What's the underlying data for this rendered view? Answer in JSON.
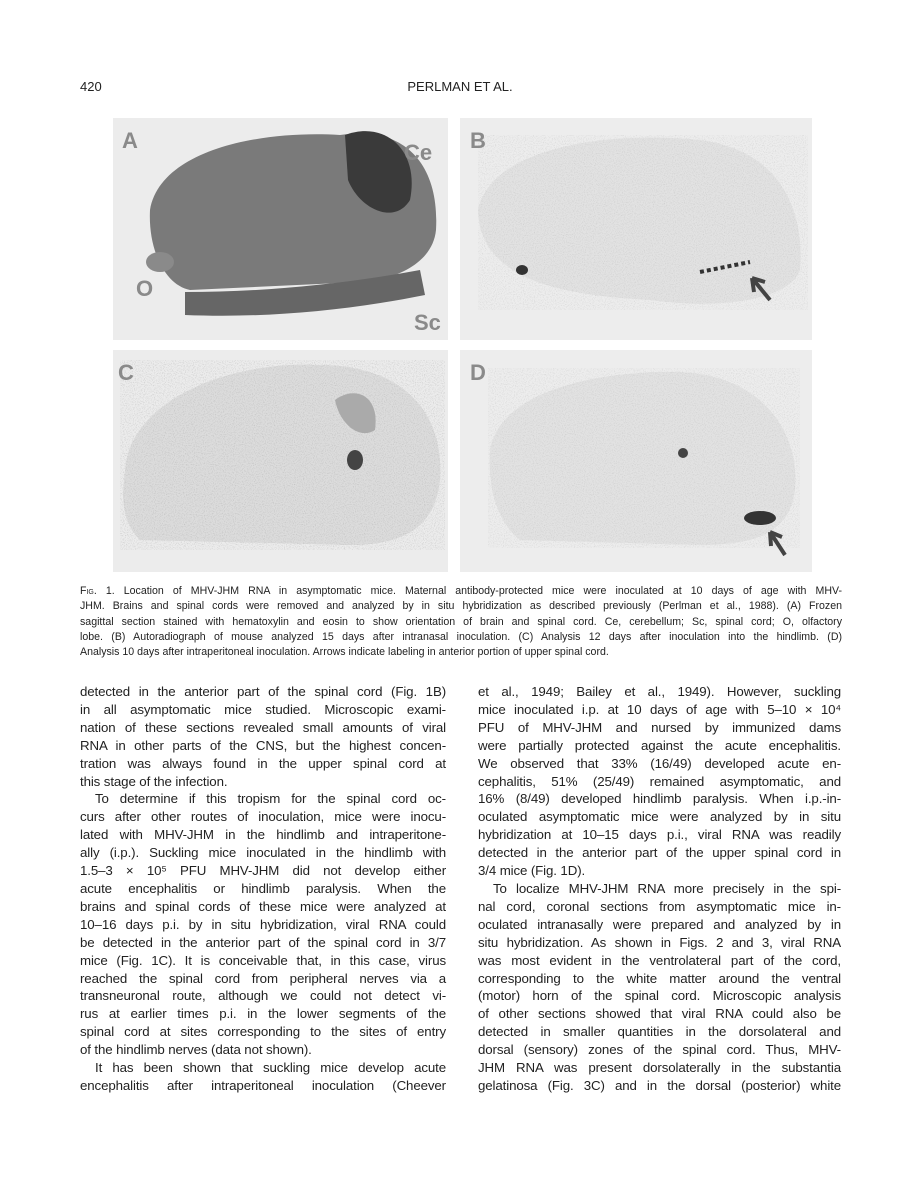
{
  "header": {
    "page_number": "420",
    "running_title": "PERLMAN ET AL."
  },
  "figure": {
    "panels": [
      {
        "letter": "A",
        "labels": [
          "Ce",
          "O",
          "Sc"
        ]
      },
      {
        "letter": "B",
        "labels": []
      },
      {
        "letter": "C",
        "labels": []
      },
      {
        "letter": "D",
        "labels": []
      }
    ],
    "caption": {
      "label": "Fig. 1.",
      "lines": [
        "Location of MHV-JHM RNA in asymptomatic mice. Maternal antibody-protected mice were inoculated at 10 days of age with MHV-",
        "JHM. Brains and spinal cords were removed and analyzed by in situ hybridization as described previously (Perlman et al., 1988). (A) Frozen",
        "sagittal section stained with hematoxylin and eosin to show orientation of brain and spinal cord. Ce, cerebellum; Sc, spinal cord; O, olfactory",
        "lobe. (B) Autoradiograph of mouse analyzed 15 days after intranasal inoculation. (C) Analysis 12 days after inoculation into the hindlimb. (D)",
        "Analysis 10 days after intraperitoneal inoculation. Arrows indicate labeling in anterior portion of upper spinal cord."
      ]
    }
  },
  "body": {
    "columns": [
      {
        "paragraphs": [
          {
            "lines": [
              "detected in the anterior part of the spinal cord (Fig. 1B)",
              "in all asymptomatic mice studied. Microscopic exami-",
              "nation of these sections revealed small amounts of viral",
              "RNA in other parts of the CNS, but the highest concen-",
              "tration was always found in the upper spinal cord at",
              "this stage of the infection."
            ]
          },
          {
            "lines": [
              "To determine if this tropism for the spinal cord oc-",
              "curs after other routes of inoculation, mice were inocu-",
              "lated with MHV-JHM in the hindlimb and intraperitone-",
              "ally (i.p.). Suckling mice inoculated in the hindlimb with",
              "1.5–3 × 10⁵ PFU MHV-JHM did not develop either",
              "acute encephalitis or hindlimb paralysis. When the",
              "brains and spinal cords of these mice were analyzed at",
              "10–16 days p.i. by in situ hybridization, viral RNA could",
              "be detected in the anterior part of the spinal cord in 3/7",
              "mice (Fig. 1C). It is conceivable that, in this case, virus",
              "reached the spinal cord from peripheral nerves via a",
              "transneuronal route, although we could not detect vi-",
              "rus at earlier times p.i. in the lower segments of the",
              "spinal cord at sites corresponding to the sites of entry",
              "of the hindlimb nerves (data not shown)."
            ]
          },
          {
            "lines": [
              "It has been shown that suckling mice develop acute",
              "encephalitis after intraperitoneal inoculation (Cheever"
            ]
          }
        ]
      },
      {
        "paragraphs": [
          {
            "lines": [
              "et al., 1949; Bailey et al., 1949). However, suckling",
              "mice inoculated i.p. at 10 days of age with 5–10 × 10⁴",
              "PFU of MHV-JHM and nursed by immunized dams",
              "were partially protected against the acute encephalitis.",
              "We observed that 33% (16/49) developed acute en-",
              "cephalitis, 51% (25/49) remained asymptomatic, and",
              "16% (8/49) developed hindlimb paralysis. When i.p.-in-",
              "oculated asymptomatic mice were analyzed by in situ",
              "hybridization at 10–15 days p.i., viral RNA was readily",
              "detected in the anterior part of the upper spinal cord in",
              "3/4 mice (Fig. 1D)."
            ]
          },
          {
            "lines": [
              "To localize MHV-JHM RNA more precisely in the spi-",
              "nal cord, coronal sections from asymptomatic mice in-",
              "oculated intranasally were prepared and analyzed by in",
              "situ hybridization. As shown in Figs. 2 and 3, viral RNA",
              "was most evident in the ventrolateral part of the cord,",
              "corresponding to the white matter around the ventral",
              "(motor) horn of the spinal cord. Microscopic analysis",
              "of other sections showed that viral RNA could also be",
              "detected in smaller quantities in the dorsolateral and",
              "dorsal (sensory) zones of the spinal cord. Thus, MHV-",
              "JHM RNA was present dorsolaterally in the substantia",
              "gelatinosa (Fig. 3C) and in the dorsal (posterior) white"
            ]
          }
        ]
      }
    ]
  }
}
